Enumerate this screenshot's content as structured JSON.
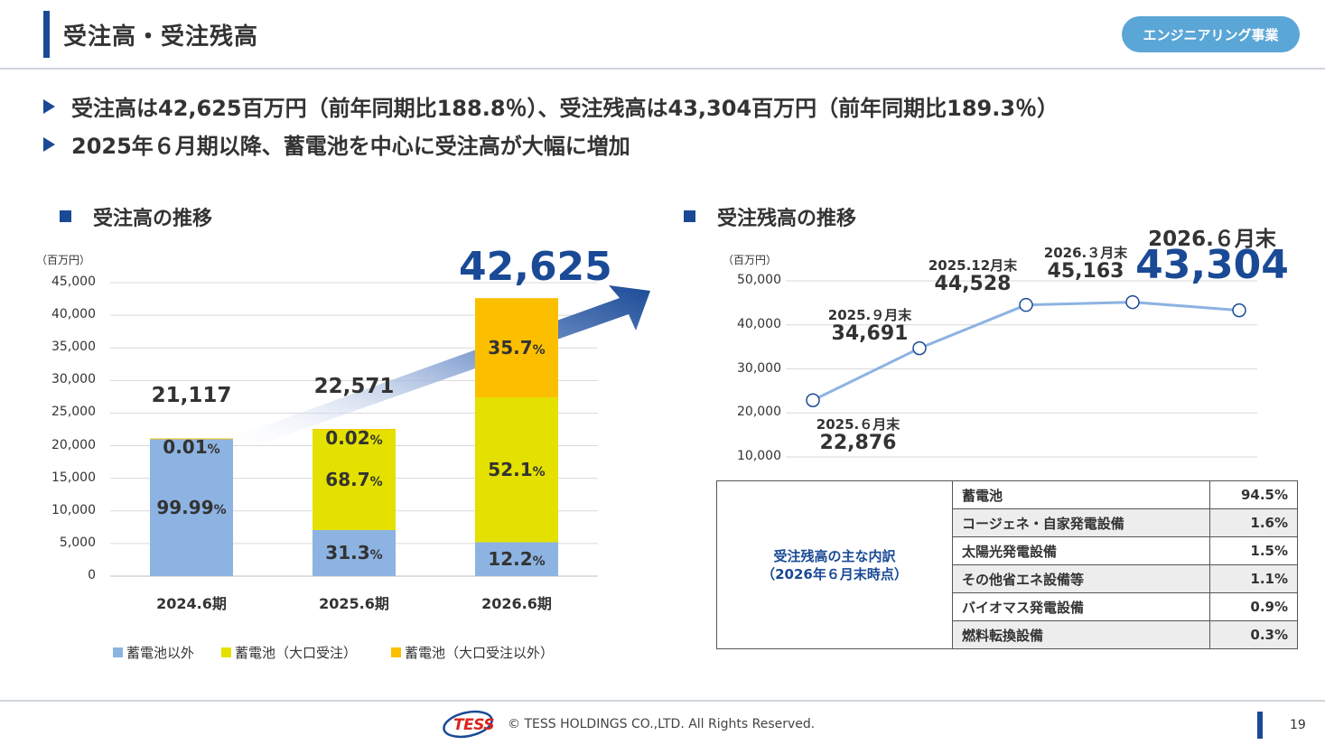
{
  "header": {
    "title": "受注高・受注残高",
    "badge": "エンジニアリング事業"
  },
  "bullets": [
    "受注高は42,625百万円（前年同期比188.8％）、受注残高は43,304百万円（前年同期比189.3％）",
    "2025年６月期以降、蓄電池を中心に受注高が大幅に増加"
  ],
  "left_section": {
    "heading": "受注高の推移",
    "unit": "（百万円）",
    "highlight_total": "42,625"
  },
  "right_section": {
    "heading": "受注残高の推移",
    "unit": "（百万円）"
  },
  "colors": {
    "accent": "#1a4a96",
    "badge": "#5aa6d6",
    "non_battery": "#8db3e2",
    "battery_large": "#e4e100",
    "battery_other": "#fcbf00",
    "line": "#8db3e2"
  },
  "chart_data": [
    {
      "type": "bar",
      "stacked": true,
      "title": "受注高の推移",
      "ylabel": "（百万円）",
      "ylim": [
        0,
        45000
      ],
      "yticks": [
        "0",
        "5,000",
        "10,000",
        "15,000",
        "20,000",
        "25,000",
        "30,000",
        "35,000",
        "40,000",
        "45,000"
      ],
      "categories": [
        "2024.6期",
        "2025.6期",
        "2026.6期"
      ],
      "totals": [
        21117,
        22571,
        42625
      ],
      "total_labels": [
        "21,117",
        "22,571",
        "42,625"
      ],
      "series": [
        {
          "name": "蓄電池以外",
          "values": [
            21115,
            7065,
            5200
          ],
          "labels": [
            "99.99",
            "31.3",
            "12.2"
          ]
        },
        {
          "name": "蓄電池（大口受注）",
          "values": [
            0,
            15501,
            22208
          ],
          "labels": [
            "",
            "68.7",
            "52.1"
          ]
        },
        {
          "name": "蓄電池（大口受注以外）",
          "values": [
            2,
            5,
            15217
          ],
          "labels": [
            "0.01",
            "0.02",
            "35.7"
          ]
        }
      ],
      "percent_sign": "%",
      "legend": "bottom",
      "grid": true
    },
    {
      "type": "line",
      "title": "受注残高の推移",
      "ylabel": "（百万円）",
      "ylim": [
        10000,
        50000
      ],
      "yticks": [
        "10,000",
        "20,000",
        "30,000",
        "40,000",
        "50,000"
      ],
      "x": [
        "2025.６月末",
        "2025.９月末",
        "2025.12月末",
        "2026.３月末",
        "2026.６月末"
      ],
      "values": [
        22876,
        34691,
        44528,
        45163,
        43304
      ],
      "value_labels": [
        "22,876",
        "34,691",
        "44,528",
        "45,163",
        "43,304"
      ],
      "grid": true
    }
  ],
  "breakdown": {
    "caption_line1": "受注残高の主な内訳",
    "caption_line2": "（2026年６月末時点）",
    "rows": [
      {
        "name": "蓄電池",
        "pct": "94.5%"
      },
      {
        "name": "コージェネ・自家発電設備",
        "pct": "1.6%"
      },
      {
        "name": "太陽光発電設備",
        "pct": "1.5%"
      },
      {
        "name": "その他省エネ設備等",
        "pct": "1.1%"
      },
      {
        "name": "バイオマス発電設備",
        "pct": "0.9%"
      },
      {
        "name": "燃料転換設備",
        "pct": "0.3%"
      }
    ]
  },
  "footer": {
    "logo": "TESS",
    "copyright": "© TESS HOLDINGS CO.,LTD. All Rights Reserved.",
    "page": "19"
  }
}
